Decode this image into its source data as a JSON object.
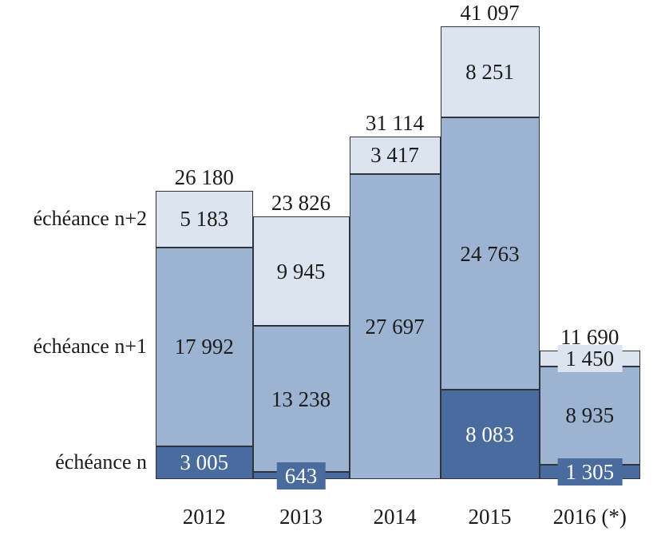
{
  "figure": {
    "background": "#ffffff",
    "text_color": "#1b1b1b",
    "bar_border_color": "#30343d"
  },
  "chart_data": {
    "type": "bar",
    "stacked": true,
    "title": "",
    "xlabel": "",
    "ylabel": "",
    "grid": false,
    "ylim": [
      0,
      41097
    ],
    "legend_position": "left-row-labels-aligned-to-first-bar",
    "categories": [
      "2012",
      "2013",
      "2014",
      "2015",
      "2016 (*)"
    ],
    "series": [
      {
        "name": "échéance n",
        "color": "#4a6b9e",
        "label_color": "#ffffff",
        "values": [
          3005,
          643,
          0,
          8083,
          1305
        ],
        "labels": [
          "3 005",
          "643",
          "",
          "8 083",
          "1 305"
        ]
      },
      {
        "name": "échéance n+1",
        "color": "#9cb4d1",
        "label_color": "#1c1c1c",
        "values": [
          17992,
          13238,
          27697,
          24763,
          8935
        ],
        "labels": [
          "17 992",
          "13 238",
          "27 697",
          "24 763",
          "8 935"
        ]
      },
      {
        "name": "échéance n+2",
        "color": "#dce4f0",
        "label_color": "#1c1c1c",
        "values": [
          5183,
          9945,
          3417,
          8251,
          1450
        ],
        "labels": [
          "5 183",
          "9 945",
          "3 417",
          "8 251",
          "1 450"
        ]
      }
    ],
    "totals": [
      26180,
      23826,
      31114,
      41097,
      11690
    ],
    "total_labels": [
      "26 180",
      "23 826",
      "31 114",
      "41 097",
      "11 690"
    ]
  }
}
